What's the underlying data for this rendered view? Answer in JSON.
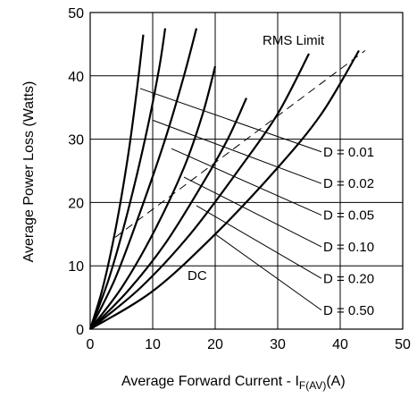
{
  "chart_data": {
    "type": "line",
    "xlabel": "Average Forward Current - I",
    "xlabel_sub": "F(AV)",
    "xlabel_unit": "(A)",
    "ylabel": "Average  Power Loss  (Watts)",
    "xlim": [
      0,
      50
    ],
    "ylim": [
      0,
      50
    ],
    "xticks": [
      "0",
      "10",
      "20",
      "30",
      "40",
      "50"
    ],
    "yticks": [
      "0",
      "10",
      "20",
      "30",
      "40",
      "50"
    ],
    "grid": true,
    "series": [
      {
        "name": "D = 0.01",
        "x": [
          0,
          2,
          4,
          6,
          7.5,
          8.5
        ],
        "y": [
          0,
          6.5,
          15.5,
          27,
          38,
          46.5
        ]
      },
      {
        "name": "D = 0.02",
        "x": [
          0,
          3,
          6,
          9,
          11,
          12
        ],
        "y": [
          0,
          8,
          18.5,
          31,
          41,
          47.5
        ]
      },
      {
        "name": "D = 0.05",
        "x": [
          0,
          4,
          8,
          12,
          15,
          17
        ],
        "y": [
          0,
          8,
          18.5,
          30,
          40,
          47.5
        ]
      },
      {
        "name": "D = 0.10",
        "x": [
          0,
          5,
          10,
          15,
          18,
          20
        ],
        "y": [
          0,
          6.5,
          15,
          25.5,
          34,
          41.5
        ]
      },
      {
        "name": "D = 0.20",
        "x": [
          0,
          6,
          12,
          18,
          22,
          25
        ],
        "y": [
          0,
          6,
          13.5,
          23,
          30,
          36.5
        ]
      },
      {
        "name": "D = 0.50",
        "x": [
          0,
          8,
          16,
          24,
          30,
          35
        ],
        "y": [
          0,
          6.5,
          15,
          25.5,
          34,
          43.5
        ]
      },
      {
        "name": "DC",
        "x": [
          0,
          10,
          20,
          30,
          37,
          43
        ],
        "y": [
          0,
          6,
          15,
          25.5,
          34,
          44
        ]
      }
    ],
    "rms_limit": {
      "x": [
        4,
        44
      ],
      "y": [
        14.5,
        44
      ]
    },
    "duty_leaders": [
      {
        "from": [
          8,
          38
        ],
        "to": [
          37,
          28
        ]
      },
      {
        "from": [
          10,
          33
        ],
        "to": [
          37,
          23
        ]
      },
      {
        "from": [
          13,
          28.5
        ],
        "to": [
          37,
          18
        ]
      },
      {
        "from": [
          15,
          24
        ],
        "to": [
          37,
          13
        ]
      },
      {
        "from": [
          17,
          19.5
        ],
        "to": [
          37,
          8
        ]
      },
      {
        "from": [
          20,
          15
        ],
        "to": [
          37,
          3
        ]
      }
    ],
    "annotations": {
      "rms_label": "RMS Limit",
      "dc_label": "DC"
    }
  }
}
